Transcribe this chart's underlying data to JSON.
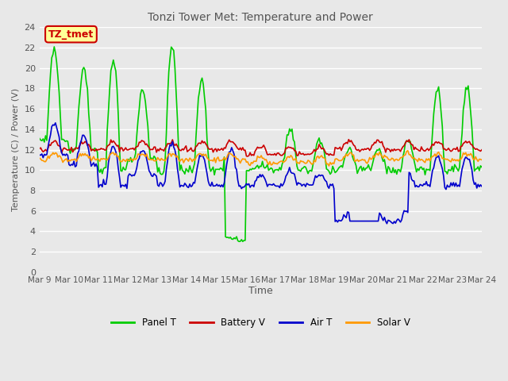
{
  "title": "Tonzi Tower Met: Temperature and Power",
  "xlabel": "Time",
  "ylabel": "Temperature (C) / Power (V)",
  "ylim": [
    0,
    24
  ],
  "yticks": [
    0,
    2,
    4,
    6,
    8,
    10,
    12,
    14,
    16,
    18,
    20,
    22,
    24
  ],
  "xtick_labels": [
    "Mar 9",
    "Mar 10",
    "Mar 11",
    "Mar 12",
    "Mar 13",
    "Mar 14",
    "Mar 15",
    "Mar 16",
    "Mar 17",
    "Mar 18",
    "Mar 19",
    "Mar 20",
    "Mar 21",
    "Mar 22",
    "Mar 23",
    "Mar 24"
  ],
  "annotation_text": "TZ_tmet",
  "annotation_color": "#cc0000",
  "annotation_bg": "#ffff99",
  "bg_color": "#e8e8e8",
  "grid_color": "#ffffff",
  "colors": {
    "panel_t": "#00cc00",
    "battery_v": "#cc0000",
    "air_t": "#0000cc",
    "solar_v": "#ff9900"
  },
  "legend": [
    "Panel T",
    "Battery V",
    "Air T",
    "Solar V"
  ]
}
